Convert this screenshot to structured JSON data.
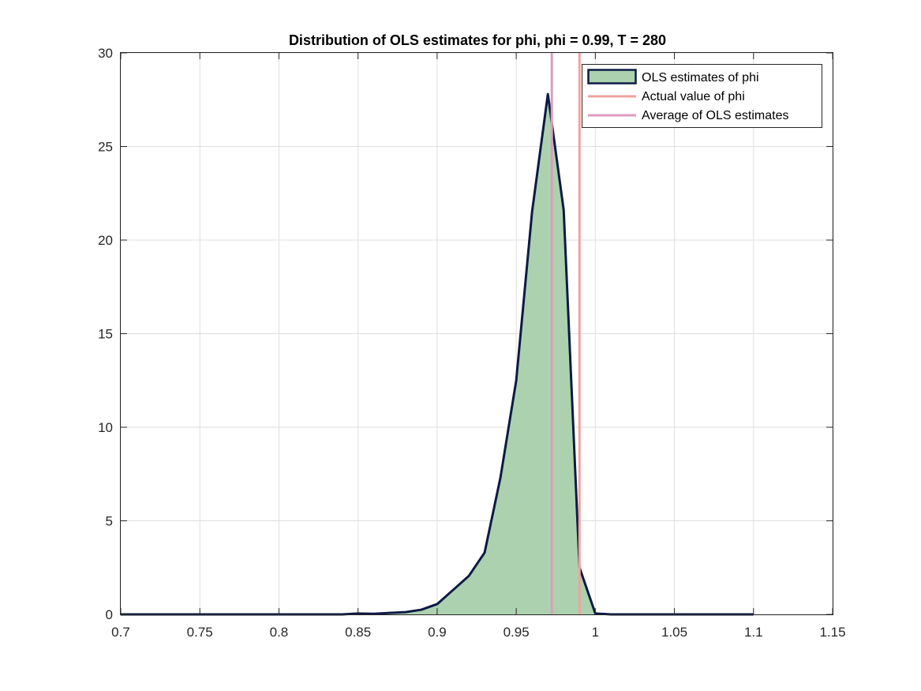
{
  "chart_data": {
    "type": "area",
    "title": "Distribution of OLS estimates for phi, phi = 0.99, T = 280",
    "xlabel": "",
    "ylabel": "",
    "xlim": [
      0.7,
      1.15
    ],
    "ylim": [
      0,
      30
    ],
    "xticks": [
      "0.7",
      "0.75",
      "0.8",
      "0.85",
      "0.9",
      "0.95",
      "1",
      "1.05",
      "1.1",
      "1.15"
    ],
    "yticks": [
      "0",
      "5",
      "10",
      "15",
      "20",
      "25",
      "30"
    ],
    "grid": true,
    "legend_position": "top-right",
    "series": [
      {
        "name": "OLS estimates of phi",
        "kind": "area",
        "fill_color": "#acd1ae",
        "edge_color": "#0c1a45",
        "x": [
          0.7,
          0.71,
          0.72,
          0.73,
          0.74,
          0.75,
          0.76,
          0.77,
          0.78,
          0.79,
          0.8,
          0.81,
          0.82,
          0.83,
          0.84,
          0.85,
          0.86,
          0.87,
          0.88,
          0.89,
          0.9,
          0.91,
          0.92,
          0.93,
          0.94,
          0.95,
          0.96,
          0.97,
          0.98,
          0.99,
          1.0,
          1.01,
          1.02,
          1.03,
          1.04,
          1.05,
          1.06,
          1.07,
          1.08,
          1.09,
          1.1
        ],
        "y": [
          0,
          0,
          0,
          0,
          0,
          0,
          0,
          0,
          0,
          0,
          0,
          0,
          0,
          0,
          0,
          0.05,
          0.03,
          0.08,
          0.12,
          0.25,
          0.55,
          1.3,
          2.05,
          3.3,
          7.3,
          12.5,
          21.5,
          27.8,
          21.6,
          2.5,
          0.05,
          0,
          0,
          0,
          0,
          0,
          0,
          0,
          0,
          0,
          0
        ]
      },
      {
        "name": "Actual value of phi",
        "kind": "vline",
        "color": "#f0a2a0",
        "x": 0.99
      },
      {
        "name": "Average of OLS estimates",
        "kind": "vline",
        "color": "#de9cbf",
        "x": 0.9725
      }
    ]
  }
}
